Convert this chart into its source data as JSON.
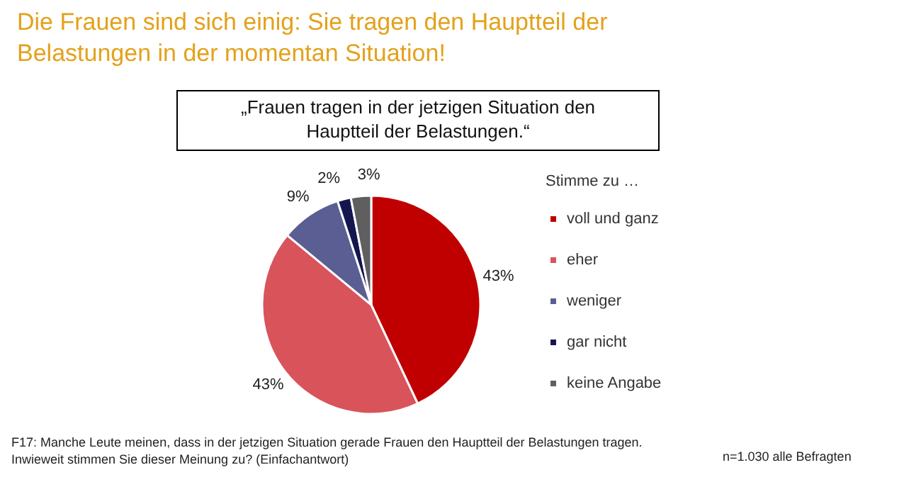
{
  "chart_data": {
    "type": "pie",
    "title": "Die Frauen sind sich einig: Sie tragen den Hauptteil der Belastungen in der momentan Situation!",
    "subtitle": "„Frauen tragen in der jetzigen Situation den Hauptteil der Belastungen.“",
    "legend_title": "Stimme zu …",
    "categories": [
      "voll und ganz",
      "eher",
      "weniger",
      "gar nicht",
      "keine Angabe"
    ],
    "values": [
      43,
      43,
      9,
      2,
      3
    ],
    "colors": [
      "#c00000",
      "#d9535b",
      "#5b5e92",
      "#141650",
      "#5f5f5f"
    ],
    "value_labels": [
      "43%",
      "43%",
      "9%",
      "2%",
      "3%"
    ],
    "legend": "right",
    "annotations": [
      "F17: Manche Leute meinen, dass in der jetzigen Situation gerade Frauen den Hauptteil der Belastungen tragen. Inwieweit stimmen Sie dieser Meinung zu? (Einfachantwort)",
      "n=1.030 alle Befragten"
    ]
  }
}
